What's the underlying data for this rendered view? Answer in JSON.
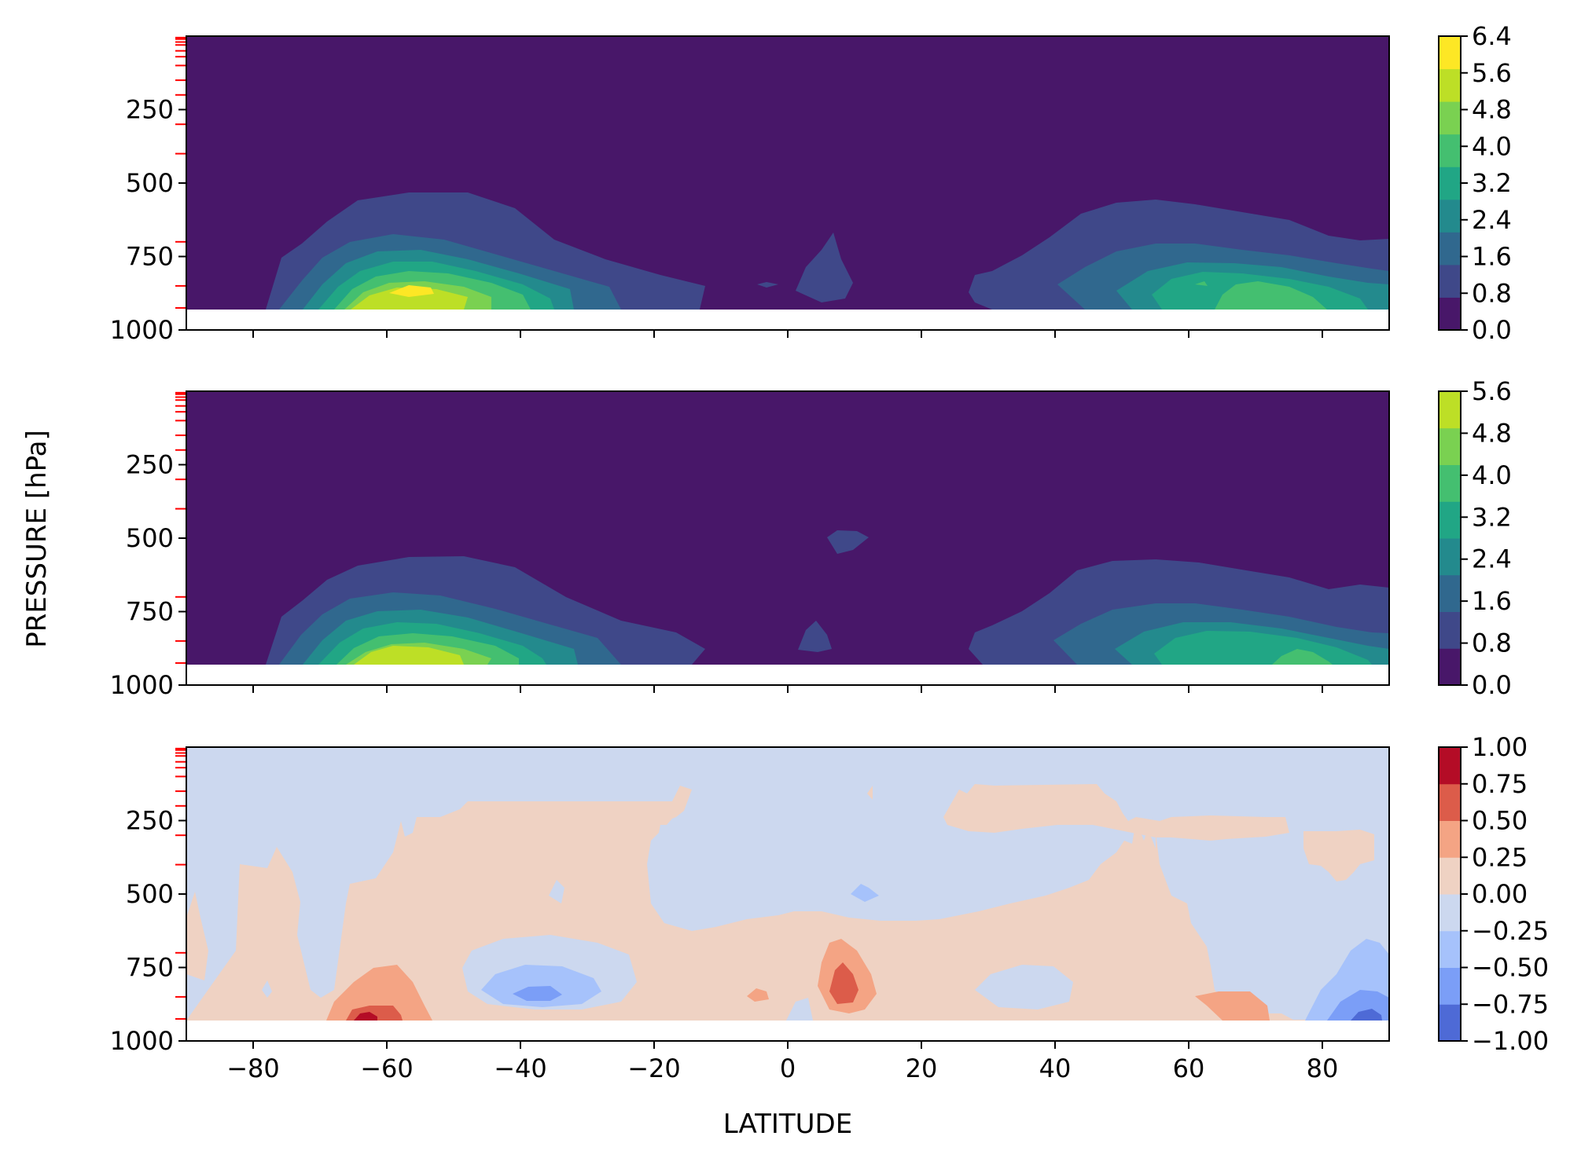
{
  "figure": {
    "ylabel": "PRESSURE [hPa]",
    "xlabel": "LATITUDE"
  },
  "chart_data": [
    {
      "type": "contourf",
      "panel": "top",
      "xlim": [
        -90,
        90
      ],
      "ylim": [
        1000,
        0
      ],
      "x_ticks": [
        -80,
        -60,
        -40,
        -20,
        0,
        20,
        40,
        60,
        80
      ],
      "y_ticks": [
        250,
        500,
        750,
        1000
      ],
      "y_tick_labels": [
        "250",
        "500",
        "750",
        "1000"
      ],
      "level_markers_hPa": [
        5,
        10,
        20,
        30,
        50,
        70,
        100,
        150,
        200,
        300,
        400,
        700,
        850,
        925
      ],
      "levels": [
        0.0,
        0.8,
        1.6,
        2.4,
        3.2,
        4.0,
        4.8,
        5.6,
        6.4
      ],
      "colorbar_ticks": [
        "0.0",
        "0.8",
        "1.6",
        "2.4",
        "3.2",
        "4.0",
        "4.8",
        "5.6",
        "6.4"
      ],
      "colors": [
        "#481769",
        "#3f4889",
        "#30688e",
        "#238a8d",
        "#21a685",
        "#44bf70",
        "#7ad151",
        "#bddf26",
        "#fde725"
      ],
      "features": [
        {
          "lat": -58,
          "p": 860,
          "peak": 6.2
        },
        {
          "lat": 65,
          "p": 860,
          "peak": 4.6
        },
        {
          "lat": 7,
          "p": 780,
          "peak": 1.2
        }
      ]
    },
    {
      "type": "contourf",
      "panel": "middle",
      "xlim": [
        -90,
        90
      ],
      "ylim": [
        1000,
        0
      ],
      "x_ticks": [
        -80,
        -60,
        -40,
        -20,
        0,
        20,
        40,
        60,
        80
      ],
      "y_ticks": [
        250,
        500,
        750,
        1000
      ],
      "y_tick_labels": [
        "250",
        "500",
        "750",
        "1000"
      ],
      "level_markers_hPa": [
        5,
        10,
        20,
        30,
        50,
        70,
        100,
        150,
        200,
        300,
        400,
        700,
        850,
        925
      ],
      "levels": [
        0.0,
        0.8,
        1.6,
        2.4,
        3.2,
        4.0,
        4.8,
        5.6
      ],
      "colorbar_ticks": [
        "0.0",
        "0.8",
        "1.6",
        "2.4",
        "3.2",
        "4.0",
        "4.8",
        "5.6"
      ],
      "colors": [
        "#481769",
        "#3f4889",
        "#30688e",
        "#238a8d",
        "#21a685",
        "#44bf70",
        "#7ad151",
        "#bddf26"
      ],
      "features": [
        {
          "lat": -56,
          "p": 860,
          "peak": 5.2
        },
        {
          "lat": 68,
          "p": 870,
          "peak": 4.2
        },
        {
          "lat": 9,
          "p": 520,
          "peak": 1.0
        }
      ]
    },
    {
      "type": "contourf",
      "panel": "bottom",
      "xlim": [
        -90,
        90
      ],
      "ylim": [
        1000,
        0
      ],
      "x_ticks": [
        -80,
        -60,
        -40,
        -20,
        0,
        20,
        40,
        60,
        80
      ],
      "x_tick_labels": [
        "−80",
        "−60",
        "−40",
        "−20",
        "0",
        "20",
        "40",
        "60",
        "80"
      ],
      "y_ticks": [
        250,
        500,
        750,
        1000
      ],
      "y_tick_labels": [
        "250",
        "500",
        "750",
        "1000"
      ],
      "level_markers_hPa": [
        5,
        10,
        20,
        30,
        50,
        70,
        100,
        150,
        200,
        300,
        400,
        700,
        850,
        925
      ],
      "levels": [
        -1.0,
        -0.75,
        -0.5,
        -0.25,
        0.0,
        0.25,
        0.5,
        0.75,
        1.0
      ],
      "colorbar_ticks": [
        "−1.00",
        "−0.75",
        "−0.50",
        "−0.25",
        "0.00",
        "0.25",
        "0.50",
        "0.75",
        "1.00"
      ],
      "colors": [
        "#4e6ad6",
        "#7b9ef7",
        "#a6c2fb",
        "#ccd8ef",
        "#efd2c3",
        "#f4a484",
        "#dc5c4a",
        "#b40c26"
      ],
      "features": [
        {
          "lat": -62,
          "p": 920,
          "value": 0.85
        },
        {
          "lat": 8,
          "p": 850,
          "value": 0.8
        },
        {
          "lat": -37,
          "p": 860,
          "value": -0.6
        },
        {
          "lat": 86,
          "p": 920,
          "value": -0.8
        }
      ]
    }
  ]
}
